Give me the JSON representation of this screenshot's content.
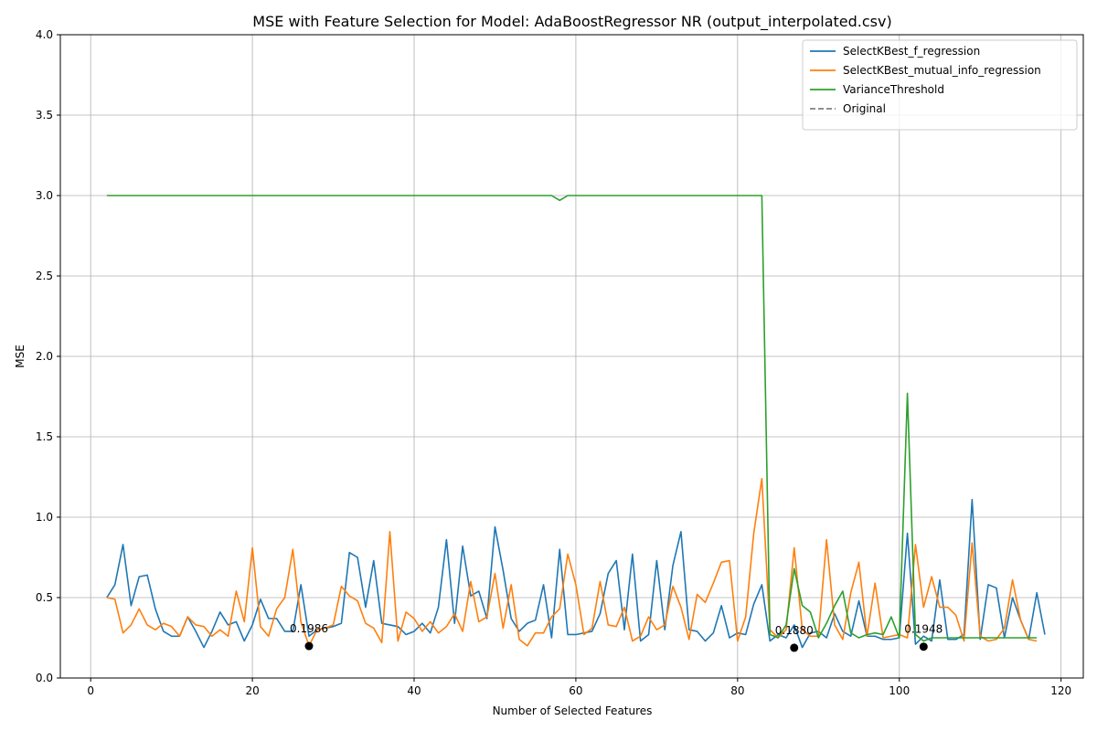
{
  "chart_data": {
    "type": "line",
    "title": "MSE with Feature Selection for Model: AdaBoostRegressor NR (output_interpolated.csv)",
    "xlabel": "Number of Selected Features",
    "ylabel": "MSE",
    "xlim": [
      -3.75,
      122.75
    ],
    "ylim": [
      0.0,
      4.0
    ],
    "xticks": [
      0,
      20,
      40,
      60,
      80,
      100,
      120
    ],
    "yticks": [
      0.0,
      0.5,
      1.0,
      1.5,
      2.0,
      2.5,
      3.0,
      3.5,
      4.0
    ],
    "ytick_labels": [
      "0.0",
      "0.5",
      "1.0",
      "1.5",
      "2.0",
      "2.5",
      "3.0",
      "3.5",
      "4.0"
    ],
    "grid": true,
    "legend_position": "top-right",
    "x_start": 2,
    "series": [
      {
        "name": "SelectKBest_f_regression",
        "color": "#1f77b4",
        "dashed": false,
        "values": [
          0.5,
          0.58,
          0.83,
          0.45,
          0.63,
          0.64,
          0.43,
          0.29,
          0.26,
          0.26,
          0.38,
          0.29,
          0.19,
          0.29,
          0.41,
          0.33,
          0.35,
          0.23,
          0.33,
          0.49,
          0.37,
          0.37,
          0.29,
          0.29,
          0.58,
          0.26,
          0.3,
          0.31,
          0.32,
          0.34,
          0.78,
          0.75,
          0.44,
          0.73,
          0.34,
          0.33,
          0.32,
          0.27,
          0.29,
          0.34,
          0.28,
          0.44,
          0.86,
          0.34,
          0.82,
          0.51,
          0.54,
          0.37,
          0.94,
          0.67,
          0.37,
          0.29,
          0.34,
          0.36,
          0.58,
          0.25,
          0.8,
          0.27,
          0.27,
          0.28,
          0.29,
          0.4,
          0.65,
          0.73,
          0.3,
          0.77,
          0.23,
          0.27,
          0.73,
          0.3,
          0.7,
          0.91,
          0.3,
          0.29,
          0.23,
          0.28,
          0.45,
          0.25,
          0.28,
          0.27,
          0.46,
          0.58,
          0.23,
          0.27,
          0.25,
          0.33,
          0.19,
          0.28,
          0.29,
          0.25,
          0.4,
          0.29,
          0.26,
          0.48,
          0.26,
          0.26,
          0.24,
          0.24,
          0.25,
          0.9,
          0.21,
          0.26,
          0.23,
          0.61,
          0.24,
          0.24,
          0.27,
          1.11,
          0.24,
          0.58,
          0.56,
          0.25,
          0.5,
          0.36,
          0.24,
          0.53,
          0.27
        ]
      },
      {
        "name": "SelectKBest_mutual_info_regression",
        "color": "#ff7f0e",
        "dashed": false,
        "values": [
          0.5,
          0.49,
          0.28,
          0.33,
          0.43,
          0.33,
          0.3,
          0.34,
          0.32,
          0.26,
          0.38,
          0.33,
          0.32,
          0.26,
          0.3,
          0.26,
          0.54,
          0.35,
          0.81,
          0.32,
          0.26,
          0.43,
          0.5,
          0.8,
          0.35,
          0.2,
          0.3,
          0.31,
          0.33,
          0.57,
          0.51,
          0.48,
          0.34,
          0.31,
          0.22,
          0.91,
          0.23,
          0.41,
          0.37,
          0.29,
          0.35,
          0.28,
          0.32,
          0.4,
          0.29,
          0.6,
          0.35,
          0.38,
          0.65,
          0.31,
          0.58,
          0.24,
          0.2,
          0.28,
          0.28,
          0.38,
          0.43,
          0.77,
          0.58,
          0.27,
          0.31,
          0.6,
          0.33,
          0.32,
          0.44,
          0.23,
          0.26,
          0.38,
          0.3,
          0.33,
          0.57,
          0.44,
          0.24,
          0.52,
          0.47,
          0.59,
          0.72,
          0.73,
          0.23,
          0.38,
          0.9,
          1.24,
          0.3,
          0.25,
          0.3,
          0.81,
          0.3,
          0.26,
          0.26,
          0.86,
          0.33,
          0.24,
          0.53,
          0.72,
          0.26,
          0.59,
          0.25,
          0.26,
          0.27,
          0.25,
          0.83,
          0.44,
          0.63,
          0.44,
          0.44,
          0.39,
          0.23,
          0.84,
          0.26,
          0.23,
          0.24,
          0.31,
          0.61,
          0.36,
          0.24,
          0.23
        ]
      },
      {
        "name": "VarianceThreshold",
        "color": "#2ca02c",
        "dashed": false,
        "values": [
          3.0,
          3.0,
          3.0,
          3.0,
          3.0,
          3.0,
          3.0,
          3.0,
          3.0,
          3.0,
          3.0,
          3.0,
          3.0,
          3.0,
          3.0,
          3.0,
          3.0,
          3.0,
          3.0,
          3.0,
          3.0,
          3.0,
          3.0,
          3.0,
          3.0,
          3.0,
          3.0,
          3.0,
          3.0,
          3.0,
          3.0,
          3.0,
          3.0,
          3.0,
          3.0,
          3.0,
          3.0,
          3.0,
          3.0,
          3.0,
          3.0,
          3.0,
          3.0,
          3.0,
          3.0,
          3.0,
          3.0,
          3.0,
          3.0,
          3.0,
          3.0,
          3.0,
          3.0,
          3.0,
          3.0,
          3.0,
          2.97,
          3.0,
          3.0,
          3.0,
          3.0,
          3.0,
          3.0,
          3.0,
          3.0,
          3.0,
          3.0,
          3.0,
          3.0,
          3.0,
          3.0,
          3.0,
          3.0,
          3.0,
          3.0,
          3.0,
          3.0,
          3.0,
          3.0,
          3.0,
          3.0,
          3.0,
          0.27,
          0.25,
          0.33,
          0.68,
          0.45,
          0.41,
          0.25,
          0.34,
          0.45,
          0.54,
          0.28,
          0.25,
          0.27,
          0.28,
          0.27,
          0.38,
          0.25,
          1.77,
          0.27,
          0.23,
          0.25,
          0.25,
          0.25,
          0.25,
          0.25,
          0.25,
          0.25,
          0.25,
          0.25,
          0.25,
          0.25,
          0.25,
          0.25,
          0.25
        ]
      },
      {
        "name": "Original",
        "color": "#808080",
        "dashed": true,
        "values": []
      }
    ],
    "annotations": [
      {
        "x": 27,
        "y": 0.1986,
        "label": "0.1986"
      },
      {
        "x": 87,
        "y": 0.188,
        "label": "0.1880"
      },
      {
        "x": 103,
        "y": 0.1948,
        "label": "0.1948"
      }
    ]
  }
}
